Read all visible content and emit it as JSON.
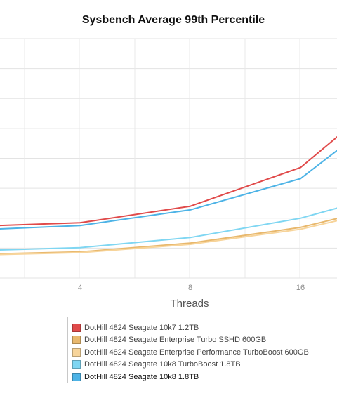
{
  "chart_data": {
    "type": "line",
    "title": "Sysbench Average 99th Percentile",
    "xlabel": "Threads",
    "ylabel": "",
    "x": [
      2,
      4,
      8,
      16,
      32
    ],
    "x_tick_labels": [
      "4",
      "8",
      "16"
    ],
    "grid": true,
    "legend_position": "bottom",
    "series": [
      {
        "name": "DotHill 4824 Seagate 10k7 1.2TB",
        "color": "#e04a4a",
        "values": [
          280,
          300,
          390,
          600,
          1100
        ]
      },
      {
        "name": "DotHill 4824 Seagate Enterprise Turbo SSHD 600GB",
        "color": "#e8b86d",
        "values": [
          128,
          142,
          190,
          275,
          420
        ]
      },
      {
        "name": "DotHill 4824 Seagate Enterprise Performance TurboBoost 600GB",
        "color": "#f7d49a",
        "values": [
          124,
          138,
          183,
          265,
          405
        ]
      },
      {
        "name": "DotHill 4824 Seagate 10k8 TurboBoost 1.8TB",
        "color": "#7fd6f2",
        "values": [
          148,
          165,
          220,
          325,
          490
        ]
      },
      {
        "name": "DotHill 4824 Seagate 10k8 1.8TB",
        "color": "#4db3e6",
        "values": [
          260,
          285,
          370,
          540,
          1000
        ]
      }
    ]
  }
}
